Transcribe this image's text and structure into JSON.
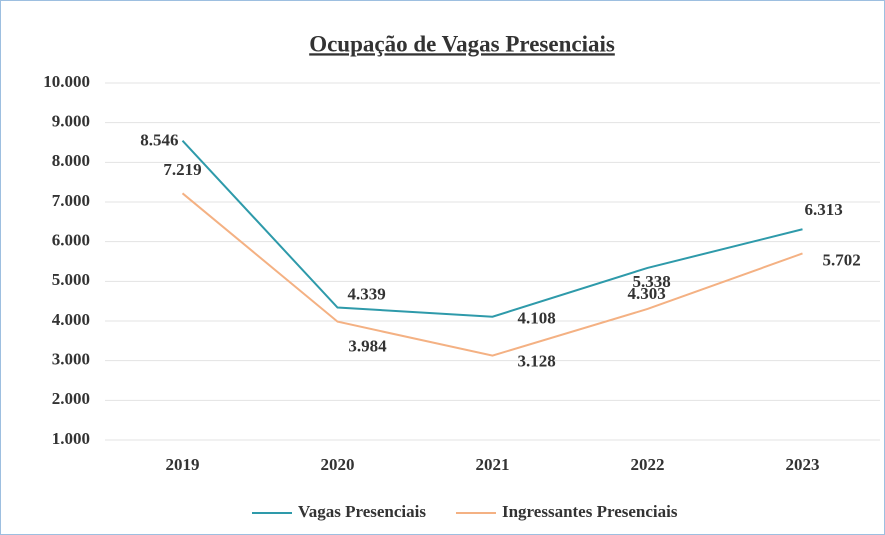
{
  "chart_data": {
    "type": "line",
    "title": "Ocupação de Vagas Presenciais",
    "categories": [
      "2019",
      "2020",
      "2021",
      "2022",
      "2023"
    ],
    "series": [
      {
        "name": "Vagas Presenciais",
        "color": "#2e9aaa",
        "values": [
          8546,
          4339,
          4108,
          5338,
          6313
        ],
        "value_labels": [
          "8.546",
          "4.339",
          "4.108",
          "5.338",
          "6.313"
        ]
      },
      {
        "name": "Ingressantes Presenciais",
        "color": "#f4b183",
        "values": [
          7219,
          3984,
          3128,
          4303,
          5702
        ],
        "value_labels": [
          "7.219",
          "3.984",
          "3.128",
          "4.303",
          "5.702"
        ]
      }
    ],
    "ylim": [
      1000,
      10000
    ],
    "yticks": [
      {
        "value": 1000,
        "label": "1.000"
      },
      {
        "value": 2000,
        "label": "2.000"
      },
      {
        "value": 3000,
        "label": "3.000"
      },
      {
        "value": 4000,
        "label": "4.000"
      },
      {
        "value": 5000,
        "label": "5.000"
      },
      {
        "value": 6000,
        "label": "6.000"
      },
      {
        "value": 7000,
        "label": "7.000"
      },
      {
        "value": 8000,
        "label": "8.000"
      },
      {
        "value": 9000,
        "label": "9.000"
      },
      {
        "value": 10000,
        "label": "10.000"
      }
    ],
    "grid": true,
    "legend": "bottom"
  }
}
